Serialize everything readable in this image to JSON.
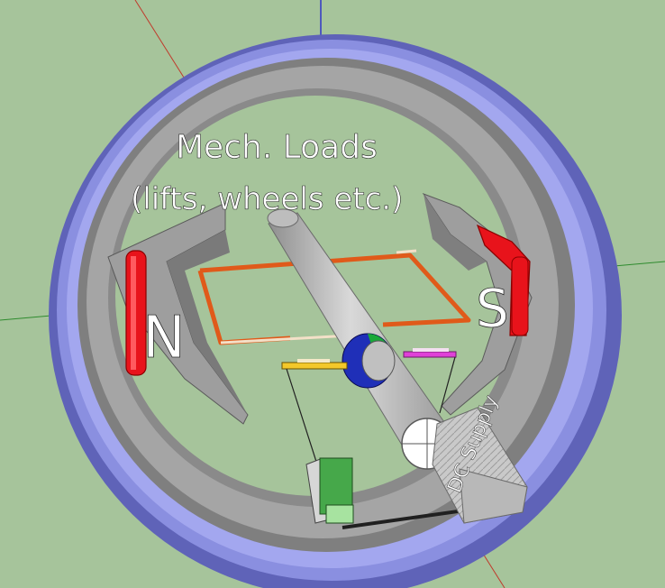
{
  "labels": {
    "loads_line1": "Mech. Loads",
    "loads_line2": "(lifts, wheels etc.)",
    "pole_north": "N",
    "pole_south": "S",
    "supply_label": "DC Supply"
  },
  "colors": {
    "background": "#a6c49b",
    "outer_ring": "#8a8fe0",
    "outer_ring_dark": "#5f63b8",
    "stator_gray": "#a4a4a4",
    "stator_dark": "#6f6f6f",
    "magnet_red": "#e8131b",
    "coil_orange": "#e05a1a",
    "shaft_gray": "#b9b9b9",
    "commutator_blue": "#1f2fb8",
    "commutator_green": "#19a83a",
    "brush_yellow": "#f3c82a",
    "brush_magenta": "#e040d8",
    "switch_green": "#46a84a"
  },
  "icons": [
    "axis-lines",
    "stator-ring",
    "magnet-poles",
    "armature-coil",
    "shaft",
    "commutator",
    "brushes",
    "switch-box",
    "battery-box"
  ]
}
